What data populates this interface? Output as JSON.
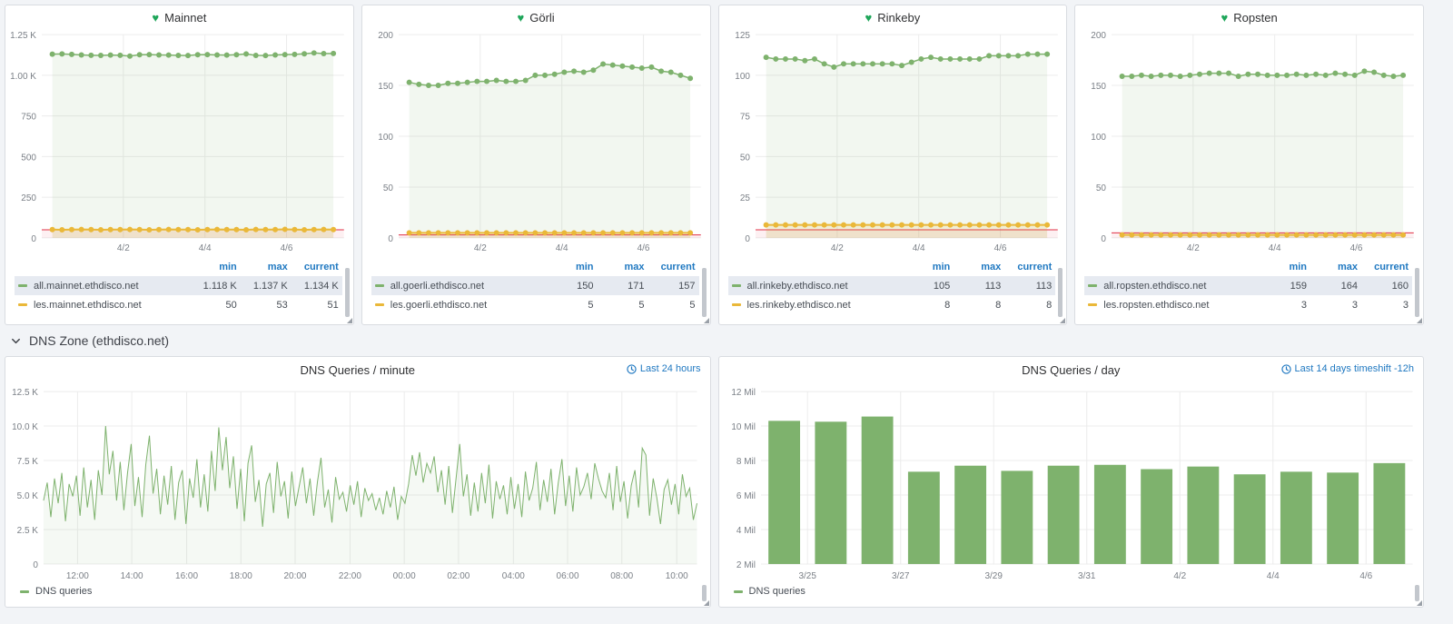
{
  "legend_headers": {
    "min": "min",
    "max": "max",
    "current": "current"
  },
  "section": {
    "title": "DNS Zone (ethdisco.net)"
  },
  "colors": {
    "series_green": "#7eb26d",
    "series_yellow": "#eab839",
    "threshold_red": "#e02f44",
    "link_blue": "#1f78c1",
    "heart_green": "#1fa65a"
  },
  "chart_data": [
    {
      "type": "line",
      "title": "Mainnet",
      "ylim": [
        0,
        1250
      ],
      "yticks": [
        {
          "v": 0,
          "label": "0"
        },
        {
          "v": 250,
          "label": "250"
        },
        {
          "v": 500,
          "label": "500"
        },
        {
          "v": 750,
          "label": "750"
        },
        {
          "v": 1000,
          "label": "1.00 K"
        },
        {
          "v": 1250,
          "label": "1.25 K"
        }
      ],
      "xticks": [
        {
          "f": 0.27,
          "label": "4/2"
        },
        {
          "f": 0.54,
          "label": "4/4"
        },
        {
          "f": 0.81,
          "label": "4/6"
        }
      ],
      "threshold": 50,
      "series": [
        {
          "name": "all.mainnet.ethdisco.net",
          "color": "#7eb26d",
          "fill": "rgba(126,178,109,0.10)",
          "dots": true,
          "inset": 0.035,
          "width": 1.5,
          "min": "1.118 K",
          "max": "1.137 K",
          "current": "1.134 K",
          "values": [
            1130,
            1131,
            1128,
            1125,
            1123,
            1122,
            1124,
            1123,
            1118,
            1126,
            1127,
            1125,
            1124,
            1122,
            1121,
            1126,
            1127,
            1125,
            1124,
            1126,
            1131,
            1122,
            1121,
            1125,
            1127,
            1128,
            1132,
            1137,
            1133,
            1134
          ]
        },
        {
          "name": "les.mainnet.ethdisco.net",
          "color": "#eab839",
          "fill": "rgba(234,184,57,0.14)",
          "dots": true,
          "inset": 0.035,
          "width": 2,
          "dot_r": 3,
          "min": "50",
          "max": "53",
          "current": "51",
          "values": [
            51,
            50,
            51,
            52,
            51,
            50,
            51,
            51,
            52,
            51,
            50,
            51,
            52,
            51,
            51,
            50,
            51,
            52,
            51,
            51,
            50,
            52,
            51,
            51,
            53,
            51,
            50,
            51,
            52,
            51
          ]
        }
      ]
    },
    {
      "type": "line",
      "title": "Görli",
      "ylim": [
        0,
        200
      ],
      "yticks": [
        {
          "v": 0,
          "label": "0"
        },
        {
          "v": 50,
          "label": "50"
        },
        {
          "v": 100,
          "label": "100"
        },
        {
          "v": 150,
          "label": "150"
        },
        {
          "v": 200,
          "label": "200"
        }
      ],
      "xticks": [
        {
          "f": 0.27,
          "label": "4/2"
        },
        {
          "f": 0.54,
          "label": "4/4"
        },
        {
          "f": 0.81,
          "label": "4/6"
        }
      ],
      "threshold": 3,
      "series": [
        {
          "name": "all.goerli.ethdisco.net",
          "color": "#7eb26d",
          "fill": "rgba(126,178,109,0.10)",
          "dots": true,
          "inset": 0.035,
          "width": 1.5,
          "min": "150",
          "max": "171",
          "current": "157",
          "values": [
            153,
            151,
            150,
            150,
            152,
            152,
            153,
            154,
            154,
            155,
            154,
            154,
            155,
            160,
            160,
            161,
            163,
            164,
            163,
            165,
            171,
            170,
            169,
            168,
            167,
            168,
            164,
            163,
            160,
            157
          ]
        },
        {
          "name": "les.goerli.ethdisco.net",
          "color": "#eab839",
          "fill": "rgba(234,184,57,0.14)",
          "dots": true,
          "inset": 0.035,
          "width": 2,
          "dot_r": 3,
          "min": "5",
          "max": "5",
          "current": "5",
          "values": [
            5,
            5,
            5,
            5,
            5,
            5,
            5,
            5,
            5,
            5,
            5,
            5,
            5,
            5,
            5,
            5,
            5,
            5,
            5,
            5,
            5,
            5,
            5,
            5,
            5,
            5,
            5,
            5,
            5,
            5
          ]
        }
      ]
    },
    {
      "type": "line",
      "title": "Rinkeby",
      "ylim": [
        0,
        125
      ],
      "yticks": [
        {
          "v": 0,
          "label": "0"
        },
        {
          "v": 25,
          "label": "25"
        },
        {
          "v": 50,
          "label": "50"
        },
        {
          "v": 75,
          "label": "75"
        },
        {
          "v": 100,
          "label": "100"
        },
        {
          "v": 125,
          "label": "125"
        }
      ],
      "xticks": [
        {
          "f": 0.27,
          "label": "4/2"
        },
        {
          "f": 0.54,
          "label": "4/4"
        },
        {
          "f": 0.81,
          "label": "4/6"
        }
      ],
      "threshold": 5,
      "series": [
        {
          "name": "all.rinkeby.ethdisco.net",
          "color": "#7eb26d",
          "fill": "rgba(126,178,109,0.10)",
          "dots": true,
          "inset": 0.035,
          "width": 1.5,
          "min": "105",
          "max": "113",
          "current": "113",
          "values": [
            111,
            110,
            110,
            110,
            109,
            110,
            107,
            105,
            107,
            107,
            107,
            107,
            107,
            107,
            106,
            108,
            110,
            111,
            110,
            110,
            110,
            110,
            110,
            112,
            112,
            112,
            112,
            113,
            113,
            113
          ]
        },
        {
          "name": "les.rinkeby.ethdisco.net",
          "color": "#eab839",
          "fill": "rgba(234,184,57,0.14)",
          "dots": true,
          "inset": 0.035,
          "width": 2,
          "dot_r": 3,
          "min": "8",
          "max": "8",
          "current": "8",
          "values": [
            8,
            8,
            8,
            8,
            8,
            8,
            8,
            8,
            8,
            8,
            8,
            8,
            8,
            8,
            8,
            8,
            8,
            8,
            8,
            8,
            8,
            8,
            8,
            8,
            8,
            8,
            8,
            8,
            8,
            8
          ]
        }
      ]
    },
    {
      "type": "line",
      "title": "Ropsten",
      "ylim": [
        0,
        200
      ],
      "yticks": [
        {
          "v": 0,
          "label": "0"
        },
        {
          "v": 50,
          "label": "50"
        },
        {
          "v": 100,
          "label": "100"
        },
        {
          "v": 150,
          "label": "150"
        },
        {
          "v": 200,
          "label": "200"
        }
      ],
      "xticks": [
        {
          "f": 0.27,
          "label": "4/2"
        },
        {
          "f": 0.54,
          "label": "4/4"
        },
        {
          "f": 0.81,
          "label": "4/6"
        }
      ],
      "threshold": 5,
      "series": [
        {
          "name": "all.ropsten.ethdisco.net",
          "color": "#7eb26d",
          "fill": "rgba(126,178,109,0.10)",
          "dots": true,
          "inset": 0.035,
          "width": 1.5,
          "min": "159",
          "max": "164",
          "current": "160",
          "values": [
            159,
            159,
            160,
            159,
            160,
            160,
            159,
            160,
            161,
            162,
            162,
            162,
            159,
            161,
            161,
            160,
            160,
            160,
            161,
            160,
            161,
            160,
            162,
            161,
            160,
            164,
            163,
            160,
            159,
            160
          ]
        },
        {
          "name": "les.ropsten.ethdisco.net",
          "color": "#eab839",
          "fill": "rgba(234,184,57,0.14)",
          "dots": true,
          "inset": 0.035,
          "width": 2,
          "dot_r": 3,
          "min": "3",
          "max": "3",
          "current": "3",
          "values": [
            3,
            3,
            3,
            3,
            3,
            3,
            3,
            3,
            3,
            3,
            3,
            3,
            3,
            3,
            3,
            3,
            3,
            3,
            3,
            3,
            3,
            3,
            3,
            3,
            3,
            3,
            3,
            3,
            3,
            3
          ]
        }
      ]
    },
    {
      "type": "line",
      "title": "DNS Queries / minute",
      "time_range": "Last 24 hours",
      "legend_label": "DNS queries",
      "ylim": [
        0,
        12500
      ],
      "yticks": [
        {
          "v": 0,
          "label": "0"
        },
        {
          "v": 2500,
          "label": "2.5 K"
        },
        {
          "v": 5000,
          "label": "5.0 K"
        },
        {
          "v": 7500,
          "label": "7.5 K"
        },
        {
          "v": 10000,
          "label": "10.0 K"
        },
        {
          "v": 12500,
          "label": "12.5 K"
        }
      ],
      "xticks": [
        {
          "f": 0.052,
          "label": "12:00"
        },
        {
          "f": 0.135,
          "label": "14:00"
        },
        {
          "f": 0.219,
          "label": "16:00"
        },
        {
          "f": 0.302,
          "label": "18:00"
        },
        {
          "f": 0.385,
          "label": "20:00"
        },
        {
          "f": 0.469,
          "label": "22:00"
        },
        {
          "f": 0.552,
          "label": "00:00"
        },
        {
          "f": 0.635,
          "label": "02:00"
        },
        {
          "f": 0.719,
          "label": "04:00"
        },
        {
          "f": 0.802,
          "label": "06:00"
        },
        {
          "f": 0.885,
          "label": "08:00"
        },
        {
          "f": 0.969,
          "label": "10:00"
        }
      ],
      "series": [
        {
          "name": "DNS queries",
          "color": "#7eb26d",
          "fill": "rgba(126,178,109,0.08)",
          "dots": false,
          "width": 1,
          "scale": 1000,
          "values": [
            4.6,
            5.9,
            3.4,
            6.2,
            4.4,
            6.6,
            3.1,
            5.8,
            4.9,
            6.4,
            3.5,
            7.0,
            4.1,
            6.1,
            3.2,
            6.8,
            5.0,
            10.0,
            6.5,
            8.2,
            4.6,
            7.4,
            3.9,
            6.6,
            8.7,
            4.2,
            6.3,
            3.4,
            7.2,
            9.3,
            5.1,
            6.9,
            3.6,
            6.4,
            4.3,
            7.1,
            3.2,
            5.9,
            6.8,
            2.9,
            6.2,
            4.8,
            7.6,
            4.1,
            6.5,
            3.8,
            8.2,
            5.3,
            9.9,
            6.8,
            9.2,
            5.5,
            7.8,
            4.0,
            6.9,
            3.1,
            7.3,
            8.6,
            4.5,
            6.1,
            2.7,
            5.8,
            6.6,
            3.7,
            7.4,
            4.9,
            6.0,
            3.3,
            6.7,
            4.2,
            5.6,
            7.0,
            4.4,
            6.2,
            3.5,
            5.9,
            7.7,
            4.1,
            5.4,
            3.0,
            6.3,
            4.7,
            5.2,
            3.8,
            5.7,
            4.3,
            6.0,
            3.4,
            5.5,
            4.6,
            5.1,
            3.9,
            4.8,
            3.6,
            5.3,
            4.1,
            5.6,
            3.2,
            4.9,
            4.4,
            5.8,
            7.9,
            6.4,
            8.1,
            5.9,
            7.3,
            6.6,
            7.8,
            5.2,
            6.8,
            4.3,
            7.1,
            3.7,
            6.2,
            8.7,
            4.9,
            6.5,
            3.5,
            5.9,
            3.8,
            6.6,
            4.4,
            7.2,
            3.3,
            6.0,
            4.7,
            5.7,
            3.6,
            6.3,
            4.0,
            5.8,
            3.4,
            6.7,
            4.6,
            5.5,
            7.4,
            3.9,
            6.1,
            4.5,
            6.9,
            3.6,
            5.9,
            7.6,
            4.2,
            6.4,
            3.8,
            7.0,
            5.0,
            5.6,
            6.6,
            4.7,
            7.3,
            6.2,
            5.3,
            4.8,
            6.6,
            3.9,
            7.1,
            4.5,
            6.0,
            3.3,
            5.7,
            6.8,
            4.1,
            8.4,
            7.9,
            3.5,
            6.2,
            4.8,
            2.9,
            5.4,
            6.1,
            4.3,
            5.8,
            3.6,
            6.5,
            4.9,
            5.5,
            3.2,
            4.4
          ]
        }
      ]
    },
    {
      "type": "bar",
      "title": "DNS Queries / day",
      "time_range": "Last 14 days timeshift -12h",
      "legend_label": "DNS queries",
      "ylim": [
        2,
        12
      ],
      "yticks": [
        {
          "v": 2,
          "label": "2 Mil"
        },
        {
          "v": 4,
          "label": "4 Mil"
        },
        {
          "v": 6,
          "label": "6 Mil"
        },
        {
          "v": 8,
          "label": "8 Mil"
        },
        {
          "v": 10,
          "label": "10 Mil"
        },
        {
          "v": 12,
          "label": "12 Mil"
        }
      ],
      "xticks": [
        {
          "f": 0.0714,
          "label": "3/25"
        },
        {
          "f": 0.2143,
          "label": "3/27"
        },
        {
          "f": 0.3571,
          "label": "3/29"
        },
        {
          "f": 0.5,
          "label": "3/31"
        },
        {
          "f": 0.6429,
          "label": "4/2"
        },
        {
          "f": 0.7857,
          "label": "4/4"
        },
        {
          "f": 0.9286,
          "label": "4/6"
        }
      ],
      "bar_color": "#7eb26d",
      "values": [
        10.3,
        10.25,
        10.55,
        7.35,
        7.7,
        7.4,
        7.7,
        7.75,
        7.5,
        7.65,
        7.2,
        7.35,
        7.3,
        7.85
      ],
      "ylabel_unit": "Mil"
    }
  ]
}
